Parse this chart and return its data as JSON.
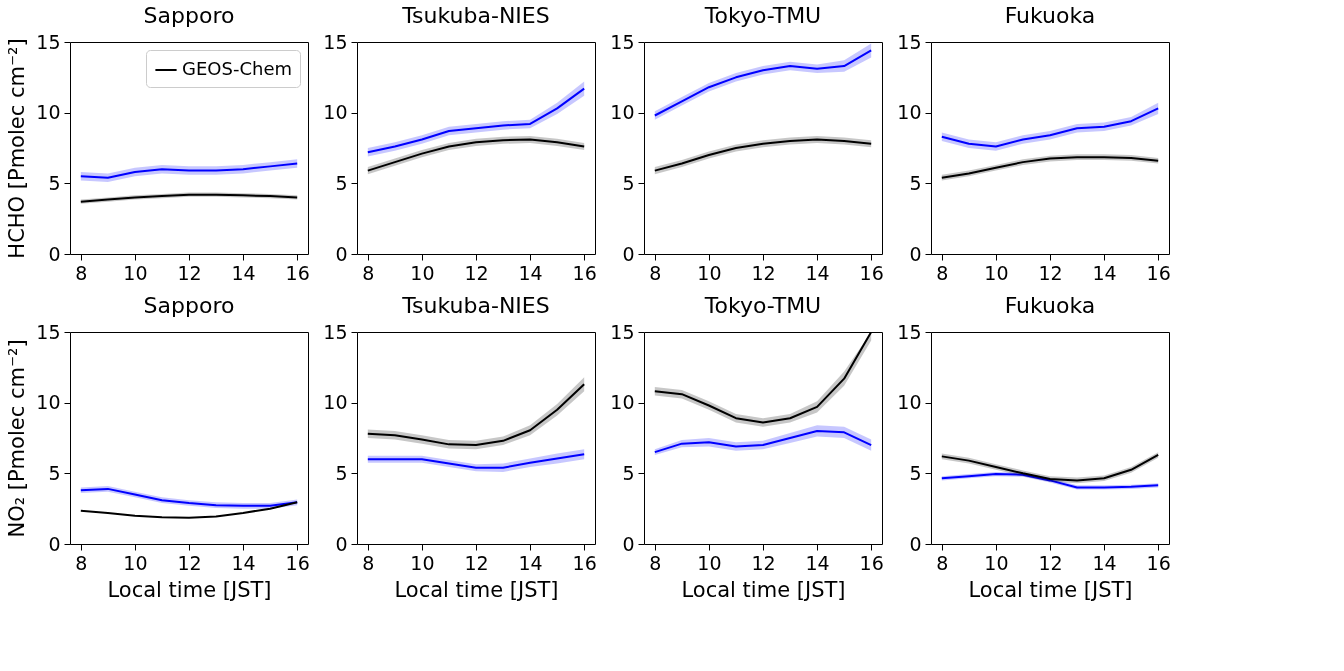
{
  "chart_data": [
    {
      "type": "line",
      "title": "Sapporo",
      "ylabel": "HCHO [Pmolec cm⁻²]",
      "x": [
        8,
        9,
        10,
        11,
        12,
        13,
        14,
        15,
        16
      ],
      "xlim": [
        7.6,
        16.4
      ],
      "xticks": [
        8,
        10,
        12,
        14,
        16
      ],
      "ylim": [
        0,
        15
      ],
      "yticks": [
        0,
        5,
        10,
        15
      ],
      "legend": "top right",
      "series": [
        {
          "color": "#0000ff",
          "values": [
            5.5,
            5.4,
            5.8,
            6.0,
            5.9,
            5.9,
            6.0,
            6.2,
            6.4
          ],
          "lower": [
            5.2,
            5.1,
            5.5,
            5.7,
            5.6,
            5.6,
            5.7,
            5.9,
            6.1
          ],
          "upper": [
            5.8,
            5.7,
            6.1,
            6.3,
            6.2,
            6.2,
            6.3,
            6.5,
            6.7
          ]
        },
        {
          "name": "GEOS-Chem",
          "color": "#000000",
          "values": [
            3.7,
            3.85,
            4.0,
            4.1,
            4.2,
            4.2,
            4.15,
            4.1,
            4.0
          ],
          "lower": [
            3.55,
            3.7,
            3.85,
            3.95,
            4.05,
            4.05,
            4.0,
            3.95,
            3.85
          ],
          "upper": [
            3.85,
            4.0,
            4.15,
            4.25,
            4.35,
            4.35,
            4.3,
            4.25,
            4.15
          ]
        }
      ]
    },
    {
      "type": "line",
      "title": "Tsukuba-NIES",
      "x": [
        8,
        9,
        10,
        11,
        12,
        13,
        14,
        15,
        16
      ],
      "xlim": [
        7.6,
        16.4
      ],
      "xticks": [
        8,
        10,
        12,
        14,
        16
      ],
      "ylim": [
        0,
        15
      ],
      "yticks": [
        0,
        5,
        10,
        15
      ],
      "series": [
        {
          "color": "#0000ff",
          "values": [
            7.2,
            7.6,
            8.1,
            8.7,
            8.9,
            9.1,
            9.2,
            10.3,
            11.7
          ],
          "lower": [
            6.9,
            7.3,
            7.8,
            8.4,
            8.6,
            8.8,
            8.9,
            9.9,
            11.2
          ],
          "upper": [
            7.5,
            7.9,
            8.4,
            9.0,
            9.2,
            9.4,
            9.5,
            10.7,
            12.2
          ]
        },
        {
          "color": "#000000",
          "values": [
            5.9,
            6.5,
            7.1,
            7.6,
            7.9,
            8.05,
            8.1,
            7.9,
            7.6
          ],
          "lower": [
            5.65,
            6.25,
            6.85,
            7.35,
            7.65,
            7.8,
            7.85,
            7.65,
            7.35
          ],
          "upper": [
            6.15,
            6.75,
            7.35,
            7.85,
            8.15,
            8.3,
            8.35,
            8.15,
            7.85
          ]
        }
      ]
    },
    {
      "type": "line",
      "title": "Tokyo-TMU",
      "x": [
        8,
        9,
        10,
        11,
        12,
        13,
        14,
        15,
        16
      ],
      "xlim": [
        7.6,
        16.4
      ],
      "xticks": [
        8,
        10,
        12,
        14,
        16
      ],
      "ylim": [
        0,
        15
      ],
      "yticks": [
        0,
        5,
        10,
        15
      ],
      "series": [
        {
          "color": "#0000ff",
          "values": [
            9.8,
            10.8,
            11.8,
            12.5,
            13.0,
            13.3,
            13.1,
            13.3,
            14.4
          ],
          "lower": [
            9.5,
            10.5,
            11.5,
            12.2,
            12.7,
            13.0,
            12.8,
            12.9,
            13.9
          ],
          "upper": [
            10.1,
            11.1,
            12.1,
            12.8,
            13.3,
            13.6,
            13.4,
            13.7,
            14.9
          ]
        },
        {
          "color": "#000000",
          "values": [
            5.9,
            6.4,
            7.0,
            7.5,
            7.8,
            8.0,
            8.1,
            8.0,
            7.8
          ],
          "lower": [
            5.65,
            6.15,
            6.75,
            7.25,
            7.55,
            7.75,
            7.85,
            7.75,
            7.55
          ],
          "upper": [
            6.15,
            6.65,
            7.25,
            7.75,
            8.05,
            8.25,
            8.35,
            8.25,
            8.05
          ]
        }
      ]
    },
    {
      "type": "line",
      "title": "Fukuoka",
      "x": [
        8,
        9,
        10,
        11,
        12,
        13,
        14,
        15,
        16
      ],
      "xlim": [
        7.6,
        16.4
      ],
      "xticks": [
        8,
        10,
        12,
        14,
        16
      ],
      "ylim": [
        0,
        15
      ],
      "yticks": [
        0,
        5,
        10,
        15
      ],
      "series": [
        {
          "color": "#0000ff",
          "values": [
            8.3,
            7.8,
            7.6,
            8.1,
            8.4,
            8.9,
            9.0,
            9.4,
            10.3
          ],
          "lower": [
            8.0,
            7.5,
            7.3,
            7.8,
            8.1,
            8.6,
            8.7,
            9.1,
            9.9
          ],
          "upper": [
            8.6,
            8.1,
            7.9,
            8.4,
            8.7,
            9.2,
            9.3,
            9.7,
            10.7
          ]
        },
        {
          "color": "#000000",
          "values": [
            5.4,
            5.7,
            6.1,
            6.5,
            6.75,
            6.85,
            6.85,
            6.8,
            6.6
          ],
          "lower": [
            5.2,
            5.5,
            5.9,
            6.3,
            6.55,
            6.65,
            6.65,
            6.6,
            6.4
          ],
          "upper": [
            5.6,
            5.9,
            6.3,
            6.7,
            6.95,
            7.05,
            7.05,
            7.0,
            6.8
          ]
        }
      ]
    },
    {
      "type": "line",
      "title": "Sapporo",
      "xlabel": "Local time [JST]",
      "ylabel": "NO₂ [Pmolec cm⁻²]",
      "x": [
        8,
        9,
        10,
        11,
        12,
        13,
        14,
        15,
        16
      ],
      "xlim": [
        7.6,
        16.4
      ],
      "xticks": [
        8,
        10,
        12,
        14,
        16
      ],
      "ylim": [
        0,
        15
      ],
      "yticks": [
        0,
        5,
        10,
        15
      ],
      "series": [
        {
          "color": "#0000ff",
          "values": [
            3.8,
            3.9,
            3.5,
            3.1,
            2.9,
            2.75,
            2.7,
            2.7,
            2.95
          ],
          "lower": [
            3.6,
            3.7,
            3.3,
            2.9,
            2.7,
            2.55,
            2.5,
            2.5,
            2.75
          ],
          "upper": [
            4.0,
            4.1,
            3.7,
            3.3,
            3.1,
            2.95,
            2.9,
            2.9,
            3.15
          ]
        },
        {
          "color": "#000000",
          "values": [
            2.35,
            2.2,
            2.0,
            1.9,
            1.85,
            1.95,
            2.2,
            2.5,
            2.95
          ]
        }
      ]
    },
    {
      "type": "line",
      "title": "Tsukuba-NIES",
      "xlabel": "Local time [JST]",
      "x": [
        8,
        9,
        10,
        11,
        12,
        13,
        14,
        15,
        16
      ],
      "xlim": [
        7.6,
        16.4
      ],
      "xticks": [
        8,
        10,
        12,
        14,
        16
      ],
      "ylim": [
        0,
        15
      ],
      "yticks": [
        0,
        5,
        10,
        15
      ],
      "series": [
        {
          "color": "#0000ff",
          "values": [
            6.0,
            6.0,
            6.0,
            5.7,
            5.4,
            5.4,
            5.75,
            6.05,
            6.35
          ],
          "lower": [
            5.75,
            5.75,
            5.75,
            5.45,
            5.15,
            5.1,
            5.45,
            5.7,
            6.0
          ],
          "upper": [
            6.25,
            6.25,
            6.25,
            5.95,
            5.65,
            5.7,
            6.05,
            6.4,
            6.7
          ]
        },
        {
          "color": "#000000",
          "values": [
            7.8,
            7.7,
            7.4,
            7.05,
            7.0,
            7.3,
            8.05,
            9.5,
            11.3
          ],
          "lower": [
            7.5,
            7.4,
            7.1,
            6.75,
            6.7,
            7.0,
            7.7,
            9.1,
            10.8
          ],
          "upper": [
            8.1,
            8.0,
            7.7,
            7.35,
            7.3,
            7.6,
            8.4,
            9.9,
            11.8
          ]
        }
      ]
    },
    {
      "type": "line",
      "title": "Tokyo-TMU",
      "xlabel": "Local time [JST]",
      "x": [
        8,
        9,
        10,
        11,
        12,
        13,
        14,
        15,
        16
      ],
      "xlim": [
        7.6,
        16.4
      ],
      "xticks": [
        8,
        10,
        12,
        14,
        16
      ],
      "ylim": [
        0,
        15
      ],
      "yticks": [
        0,
        5,
        10,
        15
      ],
      "series": [
        {
          "color": "#0000ff",
          "values": [
            6.5,
            7.1,
            7.2,
            6.9,
            7.0,
            7.5,
            8.0,
            7.9,
            7.0
          ],
          "lower": [
            6.3,
            6.85,
            6.9,
            6.6,
            6.7,
            7.15,
            7.6,
            7.5,
            6.6
          ],
          "upper": [
            6.7,
            7.35,
            7.5,
            7.2,
            7.3,
            7.85,
            8.4,
            8.3,
            7.4
          ]
        },
        {
          "color": "#000000",
          "values": [
            10.8,
            10.6,
            9.8,
            8.9,
            8.6,
            8.9,
            9.7,
            11.7,
            15.0
          ],
          "lower": [
            10.5,
            10.3,
            9.5,
            8.6,
            8.3,
            8.6,
            9.3,
            11.2,
            14.4
          ],
          "upper": [
            11.1,
            10.9,
            10.1,
            9.2,
            8.9,
            9.2,
            10.1,
            12.2,
            15.0
          ]
        }
      ]
    },
    {
      "type": "line",
      "title": "Fukuoka",
      "xlabel": "Local time [JST]",
      "x": [
        8,
        9,
        10,
        11,
        12,
        13,
        14,
        15,
        16
      ],
      "xlim": [
        7.6,
        16.4
      ],
      "xticks": [
        8,
        10,
        12,
        14,
        16
      ],
      "ylim": [
        0,
        15
      ],
      "yticks": [
        0,
        5,
        10,
        15
      ],
      "series": [
        {
          "color": "#0000ff",
          "values": [
            4.65,
            4.8,
            4.95,
            4.9,
            4.5,
            4.0,
            4.0,
            4.05,
            4.15
          ],
          "lower": [
            4.5,
            4.65,
            4.8,
            4.75,
            4.35,
            3.85,
            3.85,
            3.9,
            4.0
          ],
          "upper": [
            4.8,
            4.95,
            5.1,
            5.05,
            4.65,
            4.15,
            4.15,
            4.2,
            4.3
          ]
        },
        {
          "color": "#000000",
          "values": [
            6.2,
            5.9,
            5.45,
            5.0,
            4.6,
            4.5,
            4.65,
            5.25,
            6.3
          ],
          "lower": [
            6.0,
            5.7,
            5.25,
            4.8,
            4.4,
            4.3,
            4.45,
            5.05,
            6.1
          ],
          "upper": [
            6.4,
            6.1,
            5.65,
            5.2,
            4.8,
            4.7,
            4.85,
            5.45,
            6.5
          ]
        }
      ]
    }
  ]
}
